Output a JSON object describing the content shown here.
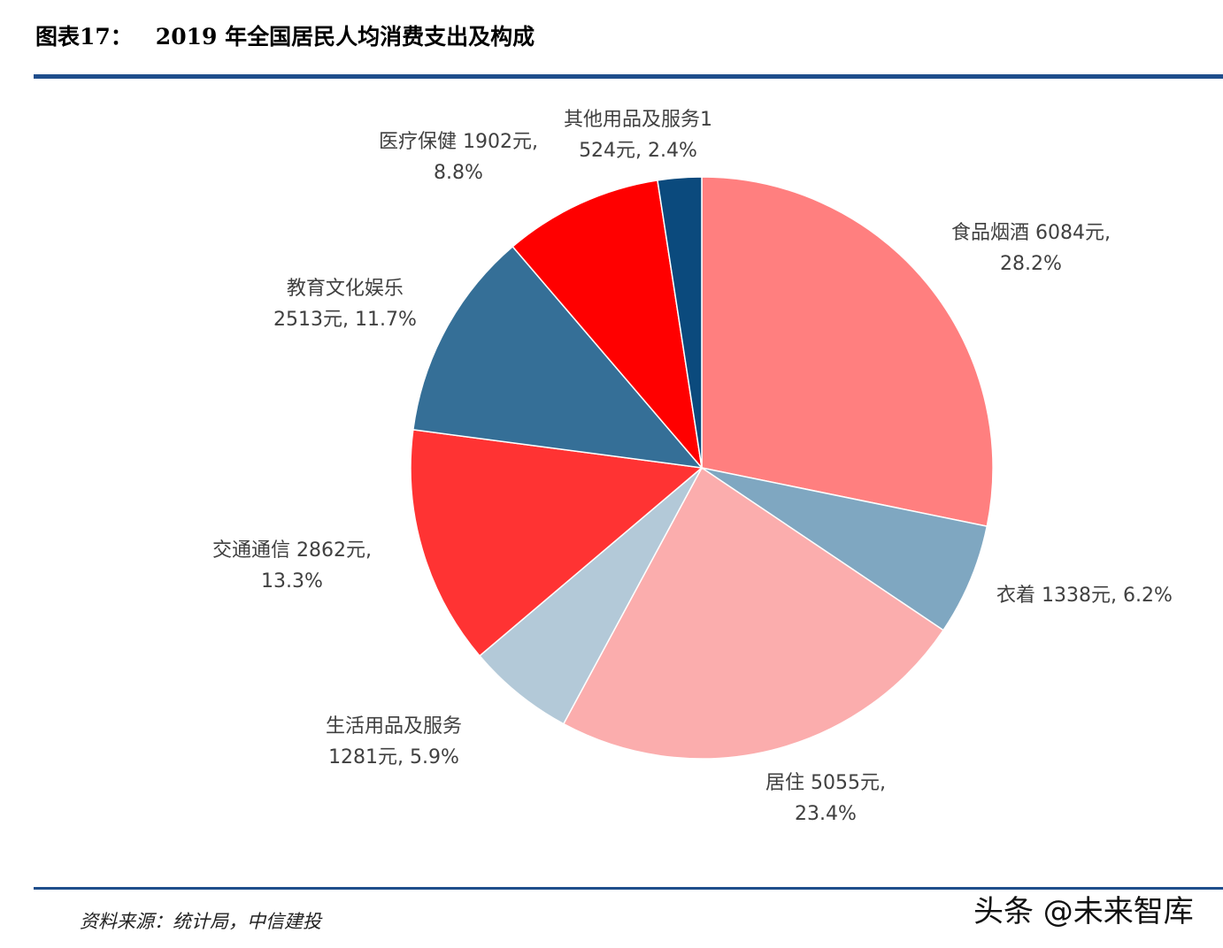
{
  "header": {
    "figure_no": "图表17：",
    "title": "2019 年全国居民人均消费支出及构成"
  },
  "footer": {
    "source": "资料来源：统计局，中信建投",
    "watermark": "头条 @未来智库"
  },
  "colors": {
    "rule": "#1f4e8c"
  },
  "chart_data": {
    "type": "pie",
    "title": "2019 年全国居民人均消费支出及构成",
    "unit": "元",
    "start_angle_deg": 0,
    "direction": "clockwise",
    "slices": [
      {
        "name": "食品烟酒",
        "value": 6084,
        "percent": 28.2,
        "color": "#ff7f7f"
      },
      {
        "name": "衣着",
        "value": 1338,
        "percent": 6.2,
        "color": "#7fa7c1"
      },
      {
        "name": "居住",
        "value": 5055,
        "percent": 23.4,
        "color": "#fbadad"
      },
      {
        "name": "生活用品及服务",
        "value": 1281,
        "percent": 5.9,
        "color": "#b3c9d8"
      },
      {
        "name": "交通通信",
        "value": 2862,
        "percent": 13.3,
        "color": "#ff3333"
      },
      {
        "name": "教育文化娱乐",
        "value": 2513,
        "percent": 11.7,
        "color": "#356f97"
      },
      {
        "name": "医疗保健",
        "value": 1902,
        "percent": 8.8,
        "color": "#ff0000"
      },
      {
        "name": "其他用品及服务",
        "value": 524,
        "percent": 2.4,
        "color": "#0b4a7d"
      }
    ],
    "legend": "none (data labels)"
  },
  "labels": {
    "food": {
      "line1": "食品烟酒 6084元,",
      "line2": "28.2%"
    },
    "clothing": {
      "line1": "衣着 1338元, 6.2%"
    },
    "housing": {
      "line1": "居住 5055元,",
      "line2": "23.4%"
    },
    "household": {
      "line1": "生活用品及服务",
      "line2": "1281元, 5.9%"
    },
    "transport": {
      "line1": "交通通信 2862元,",
      "line2": "13.3%"
    },
    "education": {
      "line1": "教育文化娱乐",
      "line2": "2513元, 11.7%"
    },
    "medical": {
      "line1": "医疗保健 1902元,",
      "line2": "8.8%"
    },
    "other": {
      "line1": "其他用品及服务1",
      "line2": "524元, 2.4%"
    }
  }
}
